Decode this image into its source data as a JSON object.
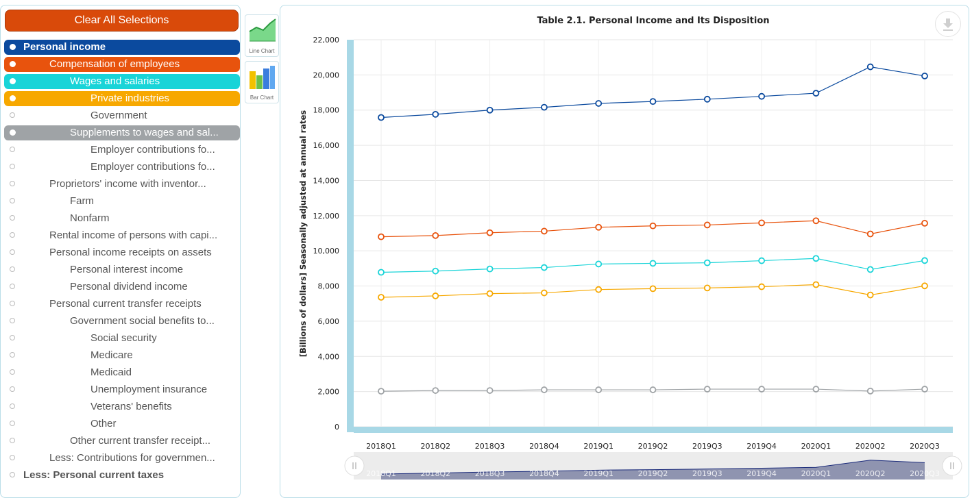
{
  "sidebar": {
    "clear_label": "Clear All Selections",
    "items": [
      {
        "label": "Personal income",
        "indent": 0,
        "selected": true,
        "color": "#0b4a9e",
        "bold": true
      },
      {
        "label": "Compensation of employees",
        "indent": 1,
        "selected": true,
        "color": "#e8530d"
      },
      {
        "label": "Wages and salaries",
        "indent": 2,
        "selected": true,
        "color": "#19d4d8"
      },
      {
        "label": "Private industries",
        "indent": 3,
        "selected": true,
        "color": "#f7a800"
      },
      {
        "label": "Government",
        "indent": 3,
        "selected": false
      },
      {
        "label": "Supplements to wages and sal...",
        "indent": 2,
        "selected": true,
        "color": "#9fa3a6"
      },
      {
        "label": "Employer contributions fo...",
        "indent": 3,
        "selected": false
      },
      {
        "label": "Employer contributions fo...",
        "indent": 3,
        "selected": false
      },
      {
        "label": "Proprietors' income with inventor...",
        "indent": 1,
        "selected": false
      },
      {
        "label": "Farm",
        "indent": 2,
        "selected": false
      },
      {
        "label": "Nonfarm",
        "indent": 2,
        "selected": false
      },
      {
        "label": "Rental income of persons with capi...",
        "indent": 1,
        "selected": false
      },
      {
        "label": "Personal income receipts on assets",
        "indent": 1,
        "selected": false
      },
      {
        "label": "Personal interest income",
        "indent": 2,
        "selected": false
      },
      {
        "label": "Personal dividend income",
        "indent": 2,
        "selected": false
      },
      {
        "label": "Personal current transfer receipts",
        "indent": 1,
        "selected": false
      },
      {
        "label": "Government social benefits to...",
        "indent": 2,
        "selected": false
      },
      {
        "label": "Social security",
        "indent": 3,
        "selected": false
      },
      {
        "label": "Medicare",
        "indent": 3,
        "selected": false
      },
      {
        "label": "Medicaid",
        "indent": 3,
        "selected": false
      },
      {
        "label": "Unemployment insurance",
        "indent": 3,
        "selected": false
      },
      {
        "label": "Veterans' benefits",
        "indent": 3,
        "selected": false
      },
      {
        "label": "Other",
        "indent": 3,
        "selected": false
      },
      {
        "label": "Other current transfer receipt...",
        "indent": 2,
        "selected": false
      },
      {
        "label": "Less: Contributions for governmen...",
        "indent": 1,
        "selected": false
      },
      {
        "label": "Less: Personal current taxes",
        "indent": 0,
        "selected": false,
        "bold": true
      }
    ]
  },
  "chart_types": {
    "line_label": "Line Chart",
    "bar_label": "Bar Chart"
  },
  "chart_data": {
    "type": "line",
    "title": "Table 2.1. Personal Income and Its Disposition",
    "ylabel": "[Billions of dollars] Seasonally adjusted at annual rates",
    "xlabel": "",
    "ylim": [
      0,
      22000
    ],
    "yticks": [
      0,
      2000,
      4000,
      6000,
      8000,
      10000,
      12000,
      14000,
      16000,
      18000,
      20000,
      22000
    ],
    "grid": true,
    "categories": [
      "2018Q1",
      "2018Q2",
      "2018Q3",
      "2018Q4",
      "2019Q1",
      "2019Q2",
      "2019Q3",
      "2019Q4",
      "2020Q1",
      "2020Q2",
      "2020Q3"
    ],
    "series": [
      {
        "color": "#0b4a9e",
        "values": [
          17580,
          17760,
          18000,
          18160,
          18380,
          18490,
          18620,
          18780,
          18960,
          20460,
          19940
        ]
      },
      {
        "color": "#e8530d",
        "values": [
          10800,
          10870,
          11030,
          11120,
          11340,
          11420,
          11470,
          11590,
          11710,
          10960,
          11570
        ]
      },
      {
        "color": "#19d4d8",
        "values": [
          8780,
          8850,
          8970,
          9050,
          9250,
          9290,
          9320,
          9440,
          9570,
          8940,
          9450
        ]
      },
      {
        "color": "#f7a800",
        "values": [
          7360,
          7440,
          7570,
          7610,
          7800,
          7850,
          7890,
          7960,
          8080,
          7490,
          8010
        ]
      },
      {
        "color": "#9fa3a6",
        "values": [
          2020,
          2060,
          2060,
          2100,
          2100,
          2100,
          2140,
          2140,
          2140,
          2030,
          2140
        ]
      }
    ]
  }
}
